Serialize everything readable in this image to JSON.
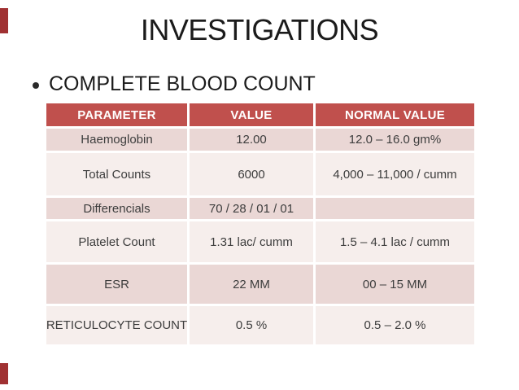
{
  "slide": {
    "title": "INVESTIGATIONS",
    "bullet": "COMPLETE BLOOD COUNT",
    "colors": {
      "header_bg": "#C0504D",
      "band_dark": "#EAD7D5",
      "band_light": "#F6EEEC",
      "header_text": "#FFFFFF",
      "body_text": "#3D3D3D",
      "edge_mark": "#A03132"
    },
    "table": {
      "columns": [
        "PARAMETER",
        "VALUE",
        "NORMAL VALUE"
      ],
      "rows": [
        {
          "parameter": "Haemoglobin",
          "value": "12.00",
          "normal": "12.0 – 16.0 gm%"
        },
        {
          "parameter": "Total Counts",
          "value": "6000",
          "normal": "4,000 – 11,000 / cumm"
        },
        {
          "parameter": "Differencials",
          "value": "70 / 28 / 01 / 01",
          "normal": ""
        },
        {
          "parameter": "Platelet Count",
          "value": "1.31 lac/ cumm",
          "normal": "1.5 – 4.1 lac / cumm"
        },
        {
          "parameter": "ESR",
          "value": "22 MM",
          "normal": "00 – 15 MM"
        },
        {
          "parameter": "RETICULOCYTE COUNT",
          "value": "0.5 %",
          "normal": "0.5 – 2.0 %"
        }
      ]
    }
  }
}
